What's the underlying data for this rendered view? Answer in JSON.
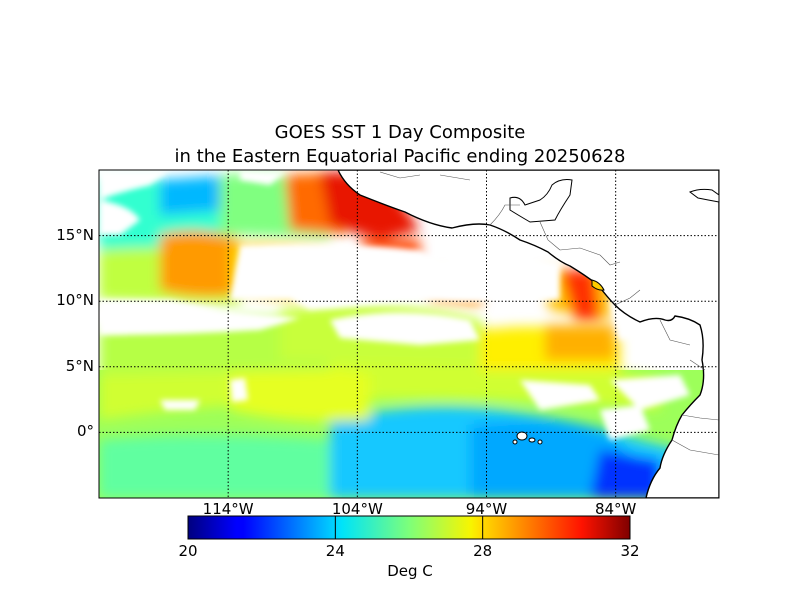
{
  "title_line1": "GOES SST 1 Day Composite",
  "title_line2": "in the Eastern Equatorial Pacific ending 20250628",
  "map": {
    "lat_range": [
      -5,
      20
    ],
    "lon_range": [
      -124,
      -76
    ],
    "lat_ticks": [
      {
        "value": 15,
        "label": "15°N"
      },
      {
        "value": 10,
        "label": "10°N"
      },
      {
        "value": 5,
        "label": "5°N"
      },
      {
        "value": 0,
        "label": "0°"
      }
    ],
    "lon_ticks": [
      {
        "value": -114,
        "label": "114°W"
      },
      {
        "value": -104,
        "label": "104°W"
      },
      {
        "value": -94,
        "label": "94°W"
      },
      {
        "value": -84,
        "label": "84°W"
      }
    ],
    "grid": true,
    "land_color": "#ffffff",
    "coastline_color": "#000000"
  },
  "colorbar": {
    "label": "Deg C",
    "min": 20,
    "max": 32,
    "ticks": [
      "20",
      "24",
      "28",
      "32"
    ],
    "colormap": "jet"
  }
}
